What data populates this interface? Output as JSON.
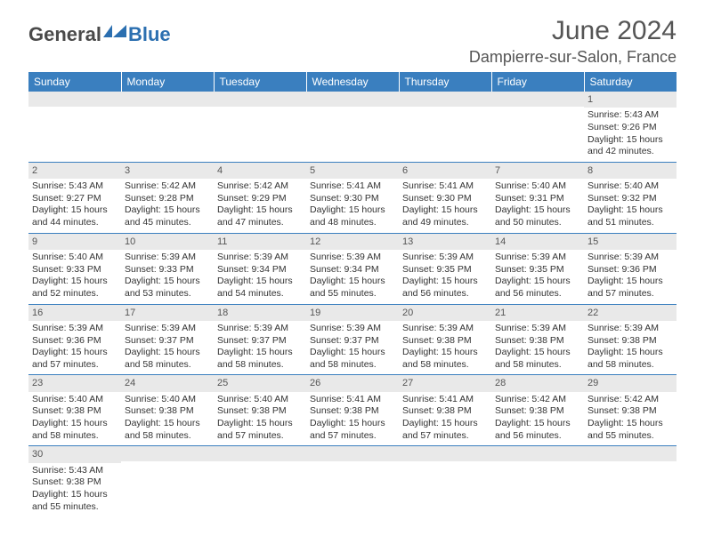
{
  "brand": {
    "word1": "General",
    "word2": "Blue"
  },
  "title": {
    "month": "June 2024",
    "location": "Dampierre-sur-Salon, France"
  },
  "colors": {
    "header_bg": "#3a7fbf",
    "header_text": "#ffffff",
    "daynum_bg": "#e9e9e9",
    "rule": "#3a7fbf",
    "text": "#333333",
    "brand_gray": "#4a4a4a",
    "brand_blue": "#2b6fb0"
  },
  "weekdays": [
    "Sunday",
    "Monday",
    "Tuesday",
    "Wednesday",
    "Thursday",
    "Friday",
    "Saturday"
  ],
  "weeks": [
    [
      {
        "num": "",
        "sunrise": "",
        "sunset": "",
        "daylight": ""
      },
      {
        "num": "",
        "sunrise": "",
        "sunset": "",
        "daylight": ""
      },
      {
        "num": "",
        "sunrise": "",
        "sunset": "",
        "daylight": ""
      },
      {
        "num": "",
        "sunrise": "",
        "sunset": "",
        "daylight": ""
      },
      {
        "num": "",
        "sunrise": "",
        "sunset": "",
        "daylight": ""
      },
      {
        "num": "",
        "sunrise": "",
        "sunset": "",
        "daylight": ""
      },
      {
        "num": "1",
        "sunrise": "Sunrise: 5:43 AM",
        "sunset": "Sunset: 9:26 PM",
        "daylight": "Daylight: 15 hours and 42 minutes."
      }
    ],
    [
      {
        "num": "2",
        "sunrise": "Sunrise: 5:43 AM",
        "sunset": "Sunset: 9:27 PM",
        "daylight": "Daylight: 15 hours and 44 minutes."
      },
      {
        "num": "3",
        "sunrise": "Sunrise: 5:42 AM",
        "sunset": "Sunset: 9:28 PM",
        "daylight": "Daylight: 15 hours and 45 minutes."
      },
      {
        "num": "4",
        "sunrise": "Sunrise: 5:42 AM",
        "sunset": "Sunset: 9:29 PM",
        "daylight": "Daylight: 15 hours and 47 minutes."
      },
      {
        "num": "5",
        "sunrise": "Sunrise: 5:41 AM",
        "sunset": "Sunset: 9:30 PM",
        "daylight": "Daylight: 15 hours and 48 minutes."
      },
      {
        "num": "6",
        "sunrise": "Sunrise: 5:41 AM",
        "sunset": "Sunset: 9:30 PM",
        "daylight": "Daylight: 15 hours and 49 minutes."
      },
      {
        "num": "7",
        "sunrise": "Sunrise: 5:40 AM",
        "sunset": "Sunset: 9:31 PM",
        "daylight": "Daylight: 15 hours and 50 minutes."
      },
      {
        "num": "8",
        "sunrise": "Sunrise: 5:40 AM",
        "sunset": "Sunset: 9:32 PM",
        "daylight": "Daylight: 15 hours and 51 minutes."
      }
    ],
    [
      {
        "num": "9",
        "sunrise": "Sunrise: 5:40 AM",
        "sunset": "Sunset: 9:33 PM",
        "daylight": "Daylight: 15 hours and 52 minutes."
      },
      {
        "num": "10",
        "sunrise": "Sunrise: 5:39 AM",
        "sunset": "Sunset: 9:33 PM",
        "daylight": "Daylight: 15 hours and 53 minutes."
      },
      {
        "num": "11",
        "sunrise": "Sunrise: 5:39 AM",
        "sunset": "Sunset: 9:34 PM",
        "daylight": "Daylight: 15 hours and 54 minutes."
      },
      {
        "num": "12",
        "sunrise": "Sunrise: 5:39 AM",
        "sunset": "Sunset: 9:34 PM",
        "daylight": "Daylight: 15 hours and 55 minutes."
      },
      {
        "num": "13",
        "sunrise": "Sunrise: 5:39 AM",
        "sunset": "Sunset: 9:35 PM",
        "daylight": "Daylight: 15 hours and 56 minutes."
      },
      {
        "num": "14",
        "sunrise": "Sunrise: 5:39 AM",
        "sunset": "Sunset: 9:35 PM",
        "daylight": "Daylight: 15 hours and 56 minutes."
      },
      {
        "num": "15",
        "sunrise": "Sunrise: 5:39 AM",
        "sunset": "Sunset: 9:36 PM",
        "daylight": "Daylight: 15 hours and 57 minutes."
      }
    ],
    [
      {
        "num": "16",
        "sunrise": "Sunrise: 5:39 AM",
        "sunset": "Sunset: 9:36 PM",
        "daylight": "Daylight: 15 hours and 57 minutes."
      },
      {
        "num": "17",
        "sunrise": "Sunrise: 5:39 AM",
        "sunset": "Sunset: 9:37 PM",
        "daylight": "Daylight: 15 hours and 58 minutes."
      },
      {
        "num": "18",
        "sunrise": "Sunrise: 5:39 AM",
        "sunset": "Sunset: 9:37 PM",
        "daylight": "Daylight: 15 hours and 58 minutes."
      },
      {
        "num": "19",
        "sunrise": "Sunrise: 5:39 AM",
        "sunset": "Sunset: 9:37 PM",
        "daylight": "Daylight: 15 hours and 58 minutes."
      },
      {
        "num": "20",
        "sunrise": "Sunrise: 5:39 AM",
        "sunset": "Sunset: 9:38 PM",
        "daylight": "Daylight: 15 hours and 58 minutes."
      },
      {
        "num": "21",
        "sunrise": "Sunrise: 5:39 AM",
        "sunset": "Sunset: 9:38 PM",
        "daylight": "Daylight: 15 hours and 58 minutes."
      },
      {
        "num": "22",
        "sunrise": "Sunrise: 5:39 AM",
        "sunset": "Sunset: 9:38 PM",
        "daylight": "Daylight: 15 hours and 58 minutes."
      }
    ],
    [
      {
        "num": "23",
        "sunrise": "Sunrise: 5:40 AM",
        "sunset": "Sunset: 9:38 PM",
        "daylight": "Daylight: 15 hours and 58 minutes."
      },
      {
        "num": "24",
        "sunrise": "Sunrise: 5:40 AM",
        "sunset": "Sunset: 9:38 PM",
        "daylight": "Daylight: 15 hours and 58 minutes."
      },
      {
        "num": "25",
        "sunrise": "Sunrise: 5:40 AM",
        "sunset": "Sunset: 9:38 PM",
        "daylight": "Daylight: 15 hours and 57 minutes."
      },
      {
        "num": "26",
        "sunrise": "Sunrise: 5:41 AM",
        "sunset": "Sunset: 9:38 PM",
        "daylight": "Daylight: 15 hours and 57 minutes."
      },
      {
        "num": "27",
        "sunrise": "Sunrise: 5:41 AM",
        "sunset": "Sunset: 9:38 PM",
        "daylight": "Daylight: 15 hours and 57 minutes."
      },
      {
        "num": "28",
        "sunrise": "Sunrise: 5:42 AM",
        "sunset": "Sunset: 9:38 PM",
        "daylight": "Daylight: 15 hours and 56 minutes."
      },
      {
        "num": "29",
        "sunrise": "Sunrise: 5:42 AM",
        "sunset": "Sunset: 9:38 PM",
        "daylight": "Daylight: 15 hours and 55 minutes."
      }
    ],
    [
      {
        "num": "30",
        "sunrise": "Sunrise: 5:43 AM",
        "sunset": "Sunset: 9:38 PM",
        "daylight": "Daylight: 15 hours and 55 minutes."
      },
      {
        "num": "",
        "sunrise": "",
        "sunset": "",
        "daylight": ""
      },
      {
        "num": "",
        "sunrise": "",
        "sunset": "",
        "daylight": ""
      },
      {
        "num": "",
        "sunrise": "",
        "sunset": "",
        "daylight": ""
      },
      {
        "num": "",
        "sunrise": "",
        "sunset": "",
        "daylight": ""
      },
      {
        "num": "",
        "sunrise": "",
        "sunset": "",
        "daylight": ""
      },
      {
        "num": "",
        "sunrise": "",
        "sunset": "",
        "daylight": ""
      }
    ]
  ]
}
